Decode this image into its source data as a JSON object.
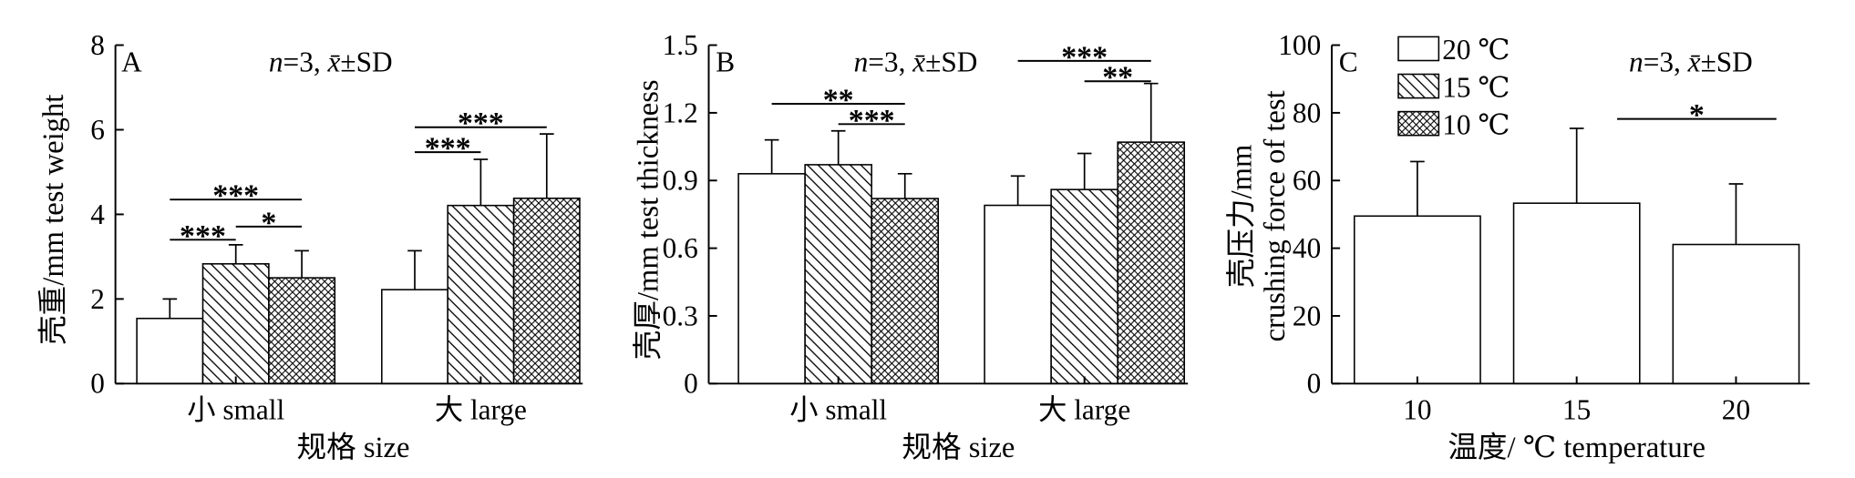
{
  "chart_data": [
    {
      "panel_label": "A",
      "type": "bar",
      "annotation": "n=3, x̄±SD",
      "categories": [
        "小 small",
        "大 large"
      ],
      "xlabel": "规格 size",
      "ylabel": [
        "壳重/mm test weight"
      ],
      "ylim": [
        0,
        8
      ],
      "yticks": [
        "0",
        "2",
        "4",
        "6",
        "8"
      ],
      "grid": false,
      "series": [
        {
          "name": "20 ℃",
          "fill_pattern": "open",
          "values": [
            1.54,
            2.22
          ],
          "sd": [
            0.46,
            0.92
          ]
        },
        {
          "name": "15 ℃",
          "fill_pattern": "diagonal-hatch",
          "values": [
            2.83,
            4.21
          ],
          "sd": [
            0.45,
            1.09
          ]
        },
        {
          "name": "10 ℃",
          "fill_pattern": "cross-hatch",
          "values": [
            2.5,
            4.38
          ],
          "sd": [
            0.64,
            1.52
          ]
        }
      ],
      "significance": [
        {
          "category": 0,
          "from_series": 0,
          "to_series": 2,
          "y": 4.35,
          "label": "***"
        },
        {
          "category": 0,
          "from_series": 0,
          "to_series": 1,
          "y": 3.4,
          "label": "***"
        },
        {
          "category": 0,
          "from_series": 1,
          "to_series": 2,
          "y": 3.71,
          "label": "*"
        },
        {
          "category": 1,
          "from_series": 0,
          "to_series": 2,
          "y": 6.06,
          "label": "***"
        },
        {
          "category": 1,
          "from_series": 0,
          "to_series": 1,
          "y": 5.47,
          "label": "***"
        }
      ]
    },
    {
      "panel_label": "B",
      "type": "bar",
      "annotation": "n=3, x̄±SD",
      "categories": [
        "小 small",
        "大 large"
      ],
      "xlabel": "规格 size",
      "ylabel": [
        "壳厚/mm test thickness"
      ],
      "ylim": [
        0,
        1.5
      ],
      "yticks": [
        "0",
        "0.3",
        "0.6",
        "0.9",
        "1.2",
        "1.5"
      ],
      "grid": false,
      "series": [
        {
          "name": "20 ℃",
          "fill_pattern": "open",
          "values": [
            0.93,
            0.79
          ],
          "sd": [
            0.15,
            0.13
          ]
        },
        {
          "name": "15 ℃",
          "fill_pattern": "diagonal-hatch",
          "values": [
            0.97,
            0.86
          ],
          "sd": [
            0.15,
            0.16
          ]
        },
        {
          "name": "10 ℃",
          "fill_pattern": "cross-hatch",
          "values": [
            0.82,
            1.07
          ],
          "sd": [
            0.11,
            0.26
          ]
        }
      ],
      "significance": [
        {
          "category": 0,
          "from_series": 0,
          "to_series": 2,
          "y": 1.24,
          "label": "**"
        },
        {
          "category": 0,
          "from_series": 1,
          "to_series": 2,
          "y": 1.15,
          "label": "***"
        },
        {
          "category": 1,
          "from_series": 0,
          "to_series": 2,
          "y": 1.43,
          "label": "***"
        },
        {
          "category": 1,
          "from_series": 1,
          "to_series": 2,
          "y": 1.34,
          "label": "**"
        }
      ]
    },
    {
      "panel_label": "C",
      "type": "bar",
      "annotation": "n=3, x̄±SD",
      "categories": [
        "10",
        "15",
        "20"
      ],
      "xlabel": "温度/ ℃ temperature",
      "ylabel": [
        "壳压力/mm",
        "crushing force of test"
      ],
      "ylim": [
        0,
        100
      ],
      "yticks": [
        "0",
        "20",
        "40",
        "60",
        "80",
        "100"
      ],
      "grid": false,
      "series": [
        {
          "fill_pattern": "open",
          "values": [
            49.5,
            53.3,
            41.1
          ],
          "sd": [
            16.1,
            22.1,
            17.9
          ]
        }
      ],
      "significance": [
        {
          "from_category": 1,
          "to_category": 2,
          "y": 78.2,
          "label": "*"
        }
      ],
      "legend": {
        "placement": "top-left",
        "items": [
          {
            "label": "20 ℃",
            "fill_pattern": "open"
          },
          {
            "label": "15 ℃",
            "fill_pattern": "diagonal-hatch"
          },
          {
            "label": "10 ℃",
            "fill_pattern": "cross-hatch"
          }
        ]
      }
    }
  ]
}
